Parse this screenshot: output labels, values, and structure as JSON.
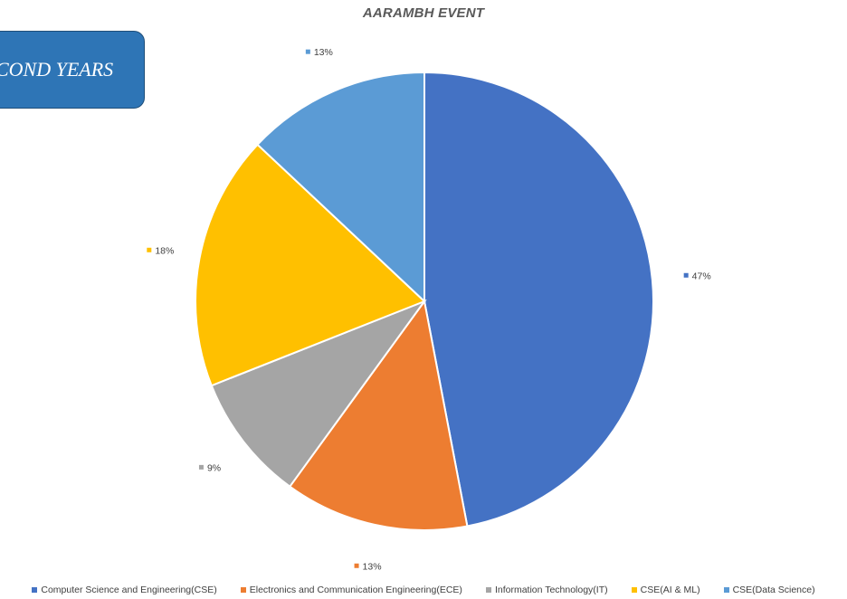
{
  "banner": {
    "text": "COND YEARS",
    "color": "#2e75b6"
  },
  "chart_data": {
    "type": "pie",
    "title": "AARAMBH EVENT",
    "legend_position": "bottom",
    "slices": [
      {
        "label": "Computer Science and Engineering(CSE)",
        "value": 47,
        "display": "47%",
        "color": "#4472c4"
      },
      {
        "label": "Electronics and Communication Engineering(ECE)",
        "value": 13,
        "display": "13%",
        "color": "#ed7d31"
      },
      {
        "label": "Information Technology(IT)",
        "value": 9,
        "display": "9%",
        "color": "#a5a5a5"
      },
      {
        "label": "CSE(AI & ML)",
        "value": 18,
        "display": "18%",
        "color": "#ffc000"
      },
      {
        "label": "CSE(Data Science)",
        "value": 13,
        "display": "13%",
        "color": "#5b9bd5"
      }
    ]
  }
}
